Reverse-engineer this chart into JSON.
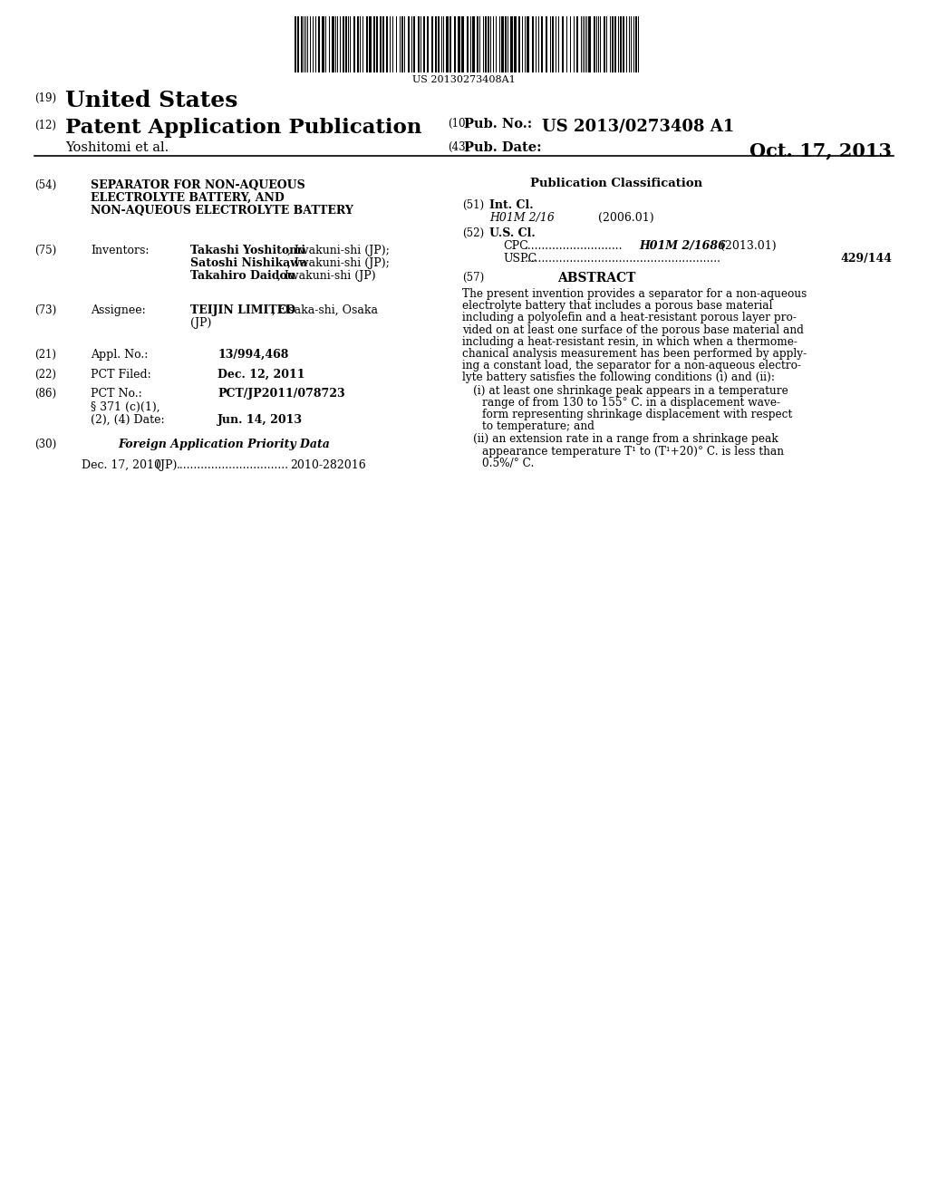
{
  "bg": "#ffffff",
  "barcode_text": "US 20130273408A1",
  "n19": "(19)",
  "united_states": "United States",
  "n12": "(12)",
  "patent_app_pub": "Patent Application Publication",
  "n10": "(10)",
  "pub_no_label": "Pub. No.:",
  "pub_no_value": "US 2013/0273408 A1",
  "yoshitomi": "Yoshitomi et al.",
  "n43": "(43)",
  "pub_date_label": "Pub. Date:",
  "pub_date_value": "Oct. 17, 2013",
  "n54": "(54)",
  "title1": "SEPARATOR FOR NON-AQUEOUS",
  "title2": "ELECTROLYTE BATTERY, AND",
  "title3": "NON-AQUEOUS ELECTROLYTE BATTERY",
  "pub_class": "Publication Classification",
  "n51": "(51)",
  "int_cl": "Int. Cl.",
  "h01m216": "H01M 2/16",
  "yr2006": "(2006.01)",
  "n52": "(52)",
  "us_cl": "U.S. Cl.",
  "cpc": "CPC",
  "cpc_dots": "............................",
  "cpc_val": "H01M 2/1686",
  "cpc_yr": "(2013.01)",
  "uspc": "USPC",
  "uspc_dots": "........................................................",
  "uspc_val": "429/144",
  "n57": "(57)",
  "abstract_hdr": "ABSTRACT",
  "abs_lines": [
    "The present invention provides a separator for a non-aqueous",
    "electrolyte battery that includes a porous base material",
    "including a polyolefin and a heat-resistant porous layer pro-",
    "vided on at least one surface of the porous base material and",
    "including a heat-resistant resin, in which when a thermome-",
    "chanical analysis measurement has been performed by apply-",
    "ing a constant load, the separator for a non-aqueous electro-",
    "lyte battery satisfies the following conditions (i) and (ii):"
  ],
  "abs_i_lines": [
    "(i) at least one shrinkage peak appears in a temperature",
    "range of from 130 to 155° C. in a displacement wave-",
    "form representing shrinkage displacement with respect",
    "to temperature; and"
  ],
  "abs_ii_lines": [
    "(ii) an extension rate in a range from a shrinkage peak",
    "appearance temperature T¹ to (T¹+20)° C. is less than",
    "0.5%/° C."
  ],
  "n75": "(75)",
  "inv_label": "Inventors:",
  "inv1b": "Takashi Yoshitomi",
  "inv1r": ", Iwakuni-shi (JP);",
  "inv2b": "Satoshi Nishikawa",
  "inv2r": ", Iwakuni-shi (JP);",
  "inv3b": "Takahiro Daidou",
  "inv3r": ", Iwakuni-shi (JP)",
  "n73": "(73)",
  "asgn_label": "Assignee:",
  "asgn_bold": "TEIJIN LIMITED",
  "asgn_rest": ", Osaka-shi, Osaka",
  "asgn_jp": "(JP)",
  "n21": "(21)",
  "appl_label": "Appl. No.:",
  "appl_val": "13/994,468",
  "n22": "(22)",
  "pct_filed_label": "PCT Filed:",
  "pct_filed_val": "Dec. 12, 2011",
  "n86": "(86)",
  "pct_no_label": "PCT No.:",
  "pct_no_val": "PCT/JP2011/078723",
  "s371a": "§ 371 (c)(1),",
  "s371b": "(2), (4) Date:",
  "s371_date": "Jun. 14, 2013",
  "n30": "(30)",
  "foreign_label": "Foreign Application Priority Data",
  "foreign_date": "Dec. 17, 2010",
  "foreign_country": "(JP)",
  "foreign_dots": "................................",
  "foreign_num": "2010-282016"
}
